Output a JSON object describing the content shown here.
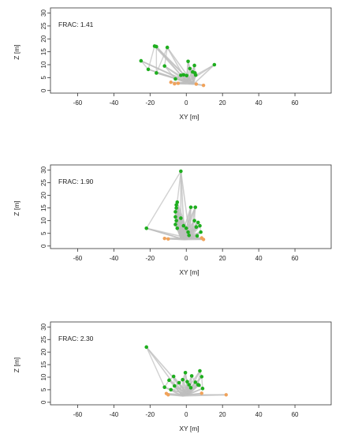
{
  "chart_data": [
    {
      "type": "scatter",
      "annotation": "FRAC: 1.41",
      "xlabel": "XY [m]",
      "ylabel": "Z [m]",
      "xlim": [
        -75,
        80
      ],
      "ylim": [
        -1,
        32
      ],
      "xticks": [
        -60,
        -40,
        -20,
        0,
        20,
        40,
        60
      ],
      "yticks": [
        0,
        5,
        10,
        15,
        20,
        25,
        30
      ],
      "grid": false,
      "base_points": [
        [
          4.0,
          2.5
        ],
        [
          0.5,
          3.2
        ]
      ],
      "green_points": [
        [
          -25,
          11.5
        ],
        [
          -21,
          8.2
        ],
        [
          -17.5,
          17.2
        ],
        [
          -16.5,
          17.0
        ],
        [
          -16.5,
          6.8
        ],
        [
          -10.5,
          16.7
        ],
        [
          -12,
          9.5
        ],
        [
          -6,
          4.5
        ],
        [
          -3,
          5.9
        ],
        [
          -1.5,
          6.1
        ],
        [
          0.2,
          5.8
        ],
        [
          1,
          11.3
        ],
        [
          2,
          8.5
        ],
        [
          3.5,
          7.2
        ],
        [
          4.5,
          9.7
        ],
        [
          4.8,
          6.8
        ],
        [
          5.2,
          6.0
        ],
        [
          15.5,
          10.0
        ]
      ],
      "orange_points": [
        [
          -8.5,
          3.2
        ],
        [
          -6.5,
          2.6
        ],
        [
          -4.5,
          2.8
        ],
        [
          5.5,
          2.5
        ],
        [
          9.5,
          2.0
        ]
      ],
      "colors": {
        "green": "#1eae1e",
        "orange": "#f0a25a",
        "lines": "#bdbdbd"
      }
    },
    {
      "type": "scatter",
      "annotation": "FRAC: 1.90",
      "xlabel": "XY [m]",
      "ylabel": "Z [m]",
      "xlim": [
        -75,
        80
      ],
      "ylim": [
        -1,
        32
      ],
      "xticks": [
        -60,
        -40,
        -20,
        0,
        20,
        40,
        60
      ],
      "yticks": [
        0,
        5,
        10,
        15,
        20,
        25,
        30
      ],
      "grid": false,
      "base_points": [
        [
          -3.0,
          3.0
        ],
        [
          -1.0,
          2.5
        ],
        [
          2.0,
          3.0
        ]
      ],
      "green_points": [
        [
          -22,
          7.0
        ],
        [
          -3,
          29.5
        ],
        [
          -5,
          17.3
        ],
        [
          -5.5,
          16.2
        ],
        [
          -5.5,
          15.0
        ],
        [
          -6,
          13.5
        ],
        [
          -6,
          11.5
        ],
        [
          -5.5,
          10.0
        ],
        [
          -6,
          8.5
        ],
        [
          -5,
          7.0
        ],
        [
          -3,
          11.0
        ],
        [
          -1.5,
          8.0
        ],
        [
          0,
          7.0
        ],
        [
          1,
          5.5
        ],
        [
          2.5,
          15.3
        ],
        [
          5,
          15.3
        ],
        [
          4.5,
          10.0
        ],
        [
          5.5,
          7.5
        ],
        [
          6.5,
          9.3
        ],
        [
          7.5,
          8.0
        ],
        [
          8,
          5.5
        ],
        [
          6,
          4.0
        ],
        [
          1.5,
          4.2
        ]
      ],
      "orange_points": [
        [
          -12,
          3.0
        ],
        [
          -10,
          2.8
        ],
        [
          8.5,
          3.2
        ],
        [
          9.5,
          2.6
        ]
      ],
      "colors": {
        "green": "#1eae1e",
        "orange": "#f0a25a",
        "lines": "#bdbdbd"
      }
    },
    {
      "type": "scatter",
      "annotation": "FRAC: 2.30",
      "xlabel": "XY [m]",
      "ylabel": "Z [m]",
      "xlim": [
        -75,
        80
      ],
      "ylim": [
        -1,
        32
      ],
      "xticks": [
        -60,
        -40,
        -20,
        0,
        20,
        40,
        60
      ],
      "yticks": [
        0,
        5,
        10,
        15,
        20,
        25,
        30
      ],
      "grid": false,
      "base_points": [
        [
          -2.0,
          2.5
        ],
        [
          1.0,
          3.0
        ]
      ],
      "green_points": [
        [
          -22,
          22.0
        ],
        [
          -12,
          6.0
        ],
        [
          -9.5,
          8.8
        ],
        [
          -7,
          10.3
        ],
        [
          -6.5,
          6.5
        ],
        [
          -4,
          7.8
        ],
        [
          -2,
          9.0
        ],
        [
          -0.5,
          11.8
        ],
        [
          0.5,
          8.2
        ],
        [
          1.5,
          7.0
        ],
        [
          2.5,
          5.8
        ],
        [
          3,
          10.5
        ],
        [
          5,
          8.0
        ],
        [
          6.5,
          7.0
        ],
        [
          7.5,
          12.5
        ],
        [
          8.5,
          10.2
        ],
        [
          9,
          5.5
        ],
        [
          7,
          6.8
        ],
        [
          -8.5,
          5.0
        ]
      ],
      "orange_points": [
        [
          -11,
          3.5
        ],
        [
          -10,
          3.0
        ],
        [
          8.5,
          3.6
        ],
        [
          22,
          3.0
        ]
      ],
      "colors": {
        "green": "#1eae1e",
        "orange": "#f0a25a",
        "lines": "#bdbdbd"
      }
    }
  ]
}
